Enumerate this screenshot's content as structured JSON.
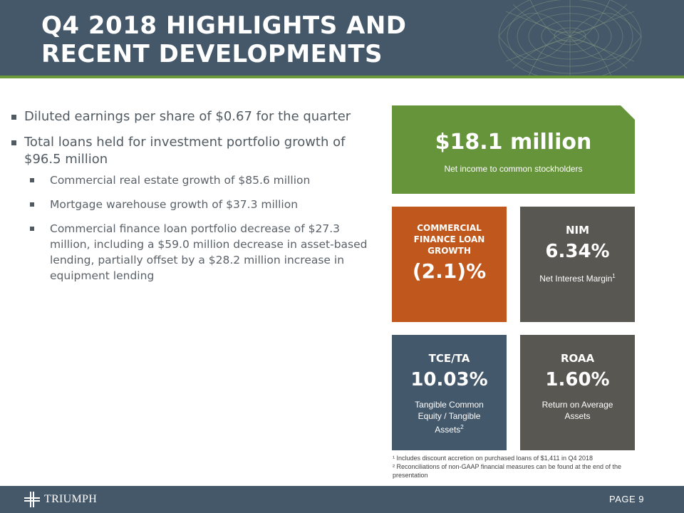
{
  "header": {
    "title": "Q4 2018 HIGHLIGHTS AND RECENT DEVELOPMENTS"
  },
  "bullets": [
    {
      "text": "Diluted earnings per share of $0.67 for the quarter",
      "sub": []
    },
    {
      "text": "Total loans held for investment portfolio growth of $96.5 million",
      "sub": [
        "Commercial real estate growth of $85.6 million",
        "Mortgage warehouse growth of $37.3 million",
        "Commercial finance loan portfolio decrease of $27.3 million, including a $59.0 million decrease in asset-based lending, partially offset by a $28.2 million increase in equipment lending"
      ]
    }
  ],
  "tiles": {
    "net_income": {
      "value": "$18.1 million",
      "label": "Net income to common stockholders",
      "color": "#66943a"
    },
    "cf_growth": {
      "heading": "COMMERCIAL FINANCE LOAN GROWTH",
      "value": "(2.1)%",
      "color": "#c0571c"
    },
    "nim": {
      "heading": "NIM",
      "value": "6.34%",
      "label": "Net Interest Margin",
      "footnote_mark": "1",
      "color": "#585752"
    },
    "tce_ta": {
      "heading": "TCE/TA",
      "value": "10.03%",
      "label": "Tangible Common Equity / Tangible Assets",
      "footnote_mark": "2",
      "color": "#43586b"
    },
    "roaa": {
      "heading": "ROAA",
      "value": "1.60%",
      "label": "Return on Average Assets",
      "color": "#585752"
    }
  },
  "footnotes": {
    "one": "¹ Includes discount accretion on purchased loans of $1,411 in Q4 2018",
    "two": "² Reconciliations of non-GAAP financial measures can be found at the end of the presentation"
  },
  "footer": {
    "logo_text": "TRIUMPH",
    "logo_icon": "triumph-cross-icon",
    "page_label": "PAGE 9"
  },
  "colors": {
    "header_bg": "#44586a",
    "accent_rule": "#6b9a3a",
    "body_text": "#515a61"
  }
}
